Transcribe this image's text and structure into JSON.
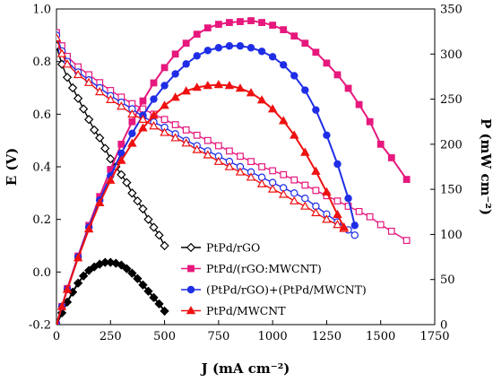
{
  "chart_data": {
    "type": "line",
    "xlabel": "J (mA cm⁻²)",
    "ylabel_left": "E (V)",
    "ylabel_right": "P (mW cm⁻²)",
    "xlim": [
      0,
      1750
    ],
    "ylim_left": [
      -0.2,
      1.0
    ],
    "ylim_right": [
      0,
      350
    ],
    "x_ticks": [
      0,
      250,
      500,
      750,
      1000,
      1250,
      1500,
      1750
    ],
    "y_ticks_left": [
      -0.2,
      0.0,
      0.2,
      0.4,
      0.6,
      0.8,
      1.0
    ],
    "y_ticks_right": [
      0,
      50,
      100,
      150,
      200,
      250,
      300,
      350
    ],
    "grid": false,
    "legend_position": "bottom-right",
    "series": [
      {
        "name": "PtPd/rGO",
        "color": "#000000",
        "marker": "diamond",
        "polarization": {
          "x": [
            0,
            25,
            50,
            75,
            100,
            125,
            150,
            175,
            200,
            225,
            250,
            275,
            300,
            325,
            350,
            375,
            400,
            425,
            450,
            475,
            500
          ],
          "y": [
            0.86,
            0.79,
            0.74,
            0.7,
            0.66,
            0.62,
            0.58,
            0.54,
            0.51,
            0.47,
            0.43,
            0.4,
            0.37,
            0.34,
            0.3,
            0.27,
            0.24,
            0.2,
            0.17,
            0.14,
            0.1
          ]
        },
        "power": {
          "x": [
            0,
            25,
            50,
            75,
            100,
            125,
            150,
            175,
            200,
            225,
            250,
            275,
            300,
            325,
            350,
            375,
            400,
            425,
            450,
            475,
            500
          ],
          "y": [
            0,
            13,
            25,
            36,
            46,
            54,
            60,
            64,
            67,
            69,
            69,
            68,
            66,
            62,
            57,
            51,
            44,
            37,
            30,
            23,
            15
          ]
        }
      },
      {
        "name": "PtPd/(rGO:MWCNT)",
        "color": "#e6187d",
        "marker": "square",
        "polarization": {
          "x": [
            0,
            25,
            50,
            100,
            150,
            200,
            250,
            300,
            350,
            400,
            450,
            500,
            550,
            600,
            650,
            700,
            750,
            800,
            850,
            900,
            950,
            1000,
            1050,
            1100,
            1150,
            1200,
            1250,
            1300,
            1350,
            1400,
            1450,
            1500,
            1550,
            1620
          ],
          "y": [
            0.91,
            0.86,
            0.82,
            0.78,
            0.75,
            0.72,
            0.69,
            0.665,
            0.64,
            0.62,
            0.6,
            0.58,
            0.56,
            0.54,
            0.52,
            0.5,
            0.48,
            0.46,
            0.44,
            0.42,
            0.4,
            0.385,
            0.37,
            0.35,
            0.33,
            0.31,
            0.29,
            0.27,
            0.25,
            0.23,
            0.21,
            0.18,
            0.155,
            0.12
          ]
        },
        "power": {
          "x": [
            0,
            25,
            50,
            100,
            150,
            200,
            250,
            300,
            350,
            400,
            450,
            500,
            550,
            600,
            650,
            700,
            750,
            800,
            850,
            900,
            950,
            1000,
            1050,
            1100,
            1150,
            1200,
            1250,
            1300,
            1350,
            1400,
            1450,
            1500,
            1550,
            1620
          ],
          "y": [
            0,
            20,
            40,
            76,
            110,
            142,
            172,
            200,
            225,
            248,
            268,
            285,
            300,
            312,
            322,
            329,
            333,
            335,
            336,
            337,
            335,
            332,
            327,
            320,
            312,
            302,
            290,
            277,
            262,
            244,
            225,
            200,
            185,
            161
          ]
        }
      },
      {
        "name": "(PtPd/rGO)+(PtPd/MWCNT)",
        "color": "#1f2ee6",
        "marker": "circle",
        "polarization": {
          "x": [
            0,
            25,
            50,
            100,
            150,
            200,
            250,
            300,
            350,
            400,
            450,
            500,
            550,
            600,
            650,
            700,
            750,
            800,
            850,
            900,
            950,
            1000,
            1050,
            1100,
            1150,
            1200,
            1250,
            1300,
            1350,
            1380
          ],
          "y": [
            0.9,
            0.84,
            0.8,
            0.76,
            0.73,
            0.7,
            0.67,
            0.645,
            0.62,
            0.59,
            0.57,
            0.55,
            0.525,
            0.5,
            0.48,
            0.46,
            0.44,
            0.42,
            0.4,
            0.38,
            0.36,
            0.34,
            0.32,
            0.3,
            0.28,
            0.25,
            0.22,
            0.19,
            0.16,
            0.14
          ]
        },
        "power": {
          "x": [
            0,
            25,
            50,
            100,
            150,
            200,
            250,
            300,
            350,
            400,
            450,
            500,
            550,
            600,
            650,
            700,
            750,
            800,
            850,
            900,
            950,
            1000,
            1050,
            1100,
            1150,
            1200,
            1250,
            1300,
            1350,
            1380
          ],
          "y": [
            0,
            20,
            39,
            75,
            108,
            138,
            165,
            190,
            212,
            232,
            250,
            265,
            278,
            289,
            298,
            304,
            307,
            309,
            309,
            307,
            303,
            297,
            288,
            276,
            260,
            238,
            210,
            178,
            140,
            110
          ]
        }
      },
      {
        "name": "PtPd/MWCNT",
        "color": "#ee1111",
        "marker": "triangle",
        "polarization": {
          "x": [
            0,
            25,
            50,
            100,
            150,
            200,
            250,
            300,
            350,
            400,
            450,
            500,
            550,
            600,
            650,
            700,
            750,
            800,
            850,
            900,
            950,
            1000,
            1050,
            1100,
            1150,
            1200,
            1250,
            1300,
            1330
          ],
          "y": [
            0.89,
            0.83,
            0.79,
            0.75,
            0.72,
            0.685,
            0.655,
            0.63,
            0.6,
            0.58,
            0.555,
            0.53,
            0.51,
            0.49,
            0.465,
            0.445,
            0.42,
            0.4,
            0.38,
            0.36,
            0.335,
            0.315,
            0.295,
            0.27,
            0.25,
            0.225,
            0.2,
            0.18,
            0.165
          ]
        },
        "power": {
          "x": [
            0,
            25,
            50,
            100,
            150,
            200,
            250,
            300,
            350,
            400,
            450,
            500,
            550,
            600,
            650,
            700,
            750,
            800,
            850,
            900,
            950,
            1000,
            1050,
            1100,
            1150,
            1200,
            1250,
            1300,
            1330
          ],
          "y": [
            0,
            20,
            39,
            74,
            106,
            135,
            160,
            182,
            201,
            218,
            232,
            243,
            252,
            259,
            263,
            265,
            266,
            265,
            262,
            257,
            249,
            239,
            226,
            210,
            191,
            170,
            147,
            122,
            108
          ]
        }
      }
    ]
  }
}
